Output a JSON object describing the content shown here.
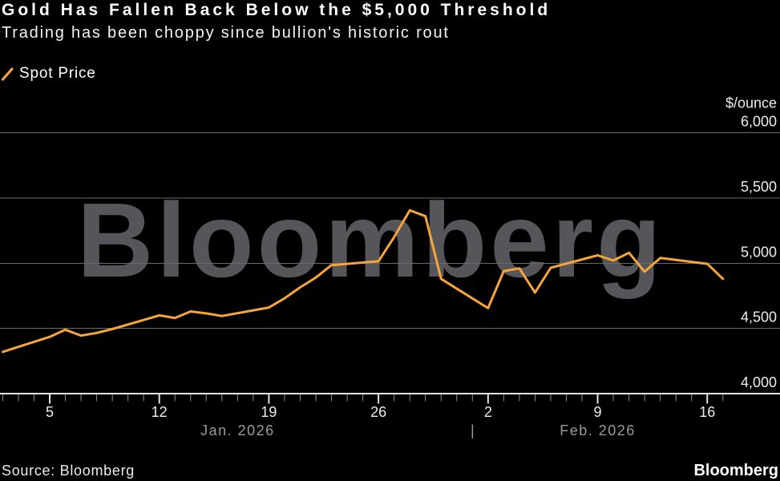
{
  "header": {
    "title": "Gold Has Fallen Back Below the $5,000 Threshold",
    "subtitle": "Trading has been choppy since bullion's historic rout"
  },
  "legend": {
    "label": "Spot Price"
  },
  "watermark": "Bloomberg",
  "footer": {
    "source": "Source: Bloomberg",
    "brand": "Bloomberg"
  },
  "colors": {
    "accent": "#F7A438",
    "gridline": "#6A6A6A",
    "axis": "#E2E2E2",
    "minor_tick": "#8F8F8F",
    "tick_label": "#ECECEC",
    "month_label": "#9A9A9A",
    "watermark": "#55555A",
    "background": "#000000"
  },
  "chart_data": {
    "type": "line",
    "title": "Gold Has Fallen Back Below the $5,000 Threshold",
    "subtitle": "Trading has been choppy since bullion's historic rout",
    "ylabel": "$/ounce",
    "ylim": [
      4000,
      6000
    ],
    "grid": true,
    "legend_position": "top-left",
    "x_range": [
      "2026-01-02",
      "2026-02-17"
    ],
    "yticks": [
      {
        "value": 4000,
        "label": "4,000"
      },
      {
        "value": 4500,
        "label": "4,500"
      },
      {
        "value": 5000,
        "label": "5,000"
      },
      {
        "value": 5500,
        "label": "5,500"
      },
      {
        "value": 6000,
        "label": "6,000"
      }
    ],
    "xticks": [
      {
        "date": "2026-01-05",
        "label": "5"
      },
      {
        "date": "2026-01-12",
        "label": "12"
      },
      {
        "date": "2026-01-19",
        "label": "19"
      },
      {
        "date": "2026-01-26",
        "label": "26"
      },
      {
        "date": "2026-02-02",
        "label": "2"
      },
      {
        "date": "2026-02-09",
        "label": "9"
      },
      {
        "date": "2026-02-16",
        "label": "16"
      }
    ],
    "months": [
      {
        "label": "Jan. 2026",
        "start": "2026-01-02",
        "end": "2026-02-01"
      },
      {
        "label": "Feb. 2026",
        "start": "2026-02-01",
        "end": "2026-02-17"
      }
    ],
    "month_separator": {
      "label": "|",
      "date": "2026-02-01"
    },
    "series": [
      {
        "name": "Spot Price",
        "color": "#F7A438",
        "points": [
          [
            "2026-01-02",
            4320
          ],
          [
            "2026-01-05",
            4435
          ],
          [
            "2026-01-06",
            4490
          ],
          [
            "2026-01-07",
            4445
          ],
          [
            "2026-01-08",
            4465
          ],
          [
            "2026-01-09",
            4495
          ],
          [
            "2026-01-12",
            4600
          ],
          [
            "2026-01-13",
            4580
          ],
          [
            "2026-01-14",
            4630
          ],
          [
            "2026-01-15",
            4615
          ],
          [
            "2026-01-16",
            4595
          ],
          [
            "2026-01-19",
            4660
          ],
          [
            "2026-01-20",
            4730
          ],
          [
            "2026-01-21",
            4815
          ],
          [
            "2026-01-22",
            4890
          ],
          [
            "2026-01-23",
            4985
          ],
          [
            "2026-01-26",
            5015
          ],
          [
            "2026-01-27",
            5200
          ],
          [
            "2026-01-28",
            5405
          ],
          [
            "2026-01-29",
            5360
          ],
          [
            "2026-01-30",
            4880
          ],
          [
            "2026-02-02",
            4655
          ],
          [
            "2026-02-03",
            4940
          ],
          [
            "2026-02-04",
            4960
          ],
          [
            "2026-02-05",
            4775
          ],
          [
            "2026-02-06",
            4965
          ],
          [
            "2026-02-09",
            5060
          ],
          [
            "2026-02-10",
            5020
          ],
          [
            "2026-02-11",
            5080
          ],
          [
            "2026-02-12",
            4935
          ],
          [
            "2026-02-13",
            5040
          ],
          [
            "2026-02-16",
            4995
          ],
          [
            "2026-02-17",
            4880
          ]
        ]
      }
    ]
  }
}
